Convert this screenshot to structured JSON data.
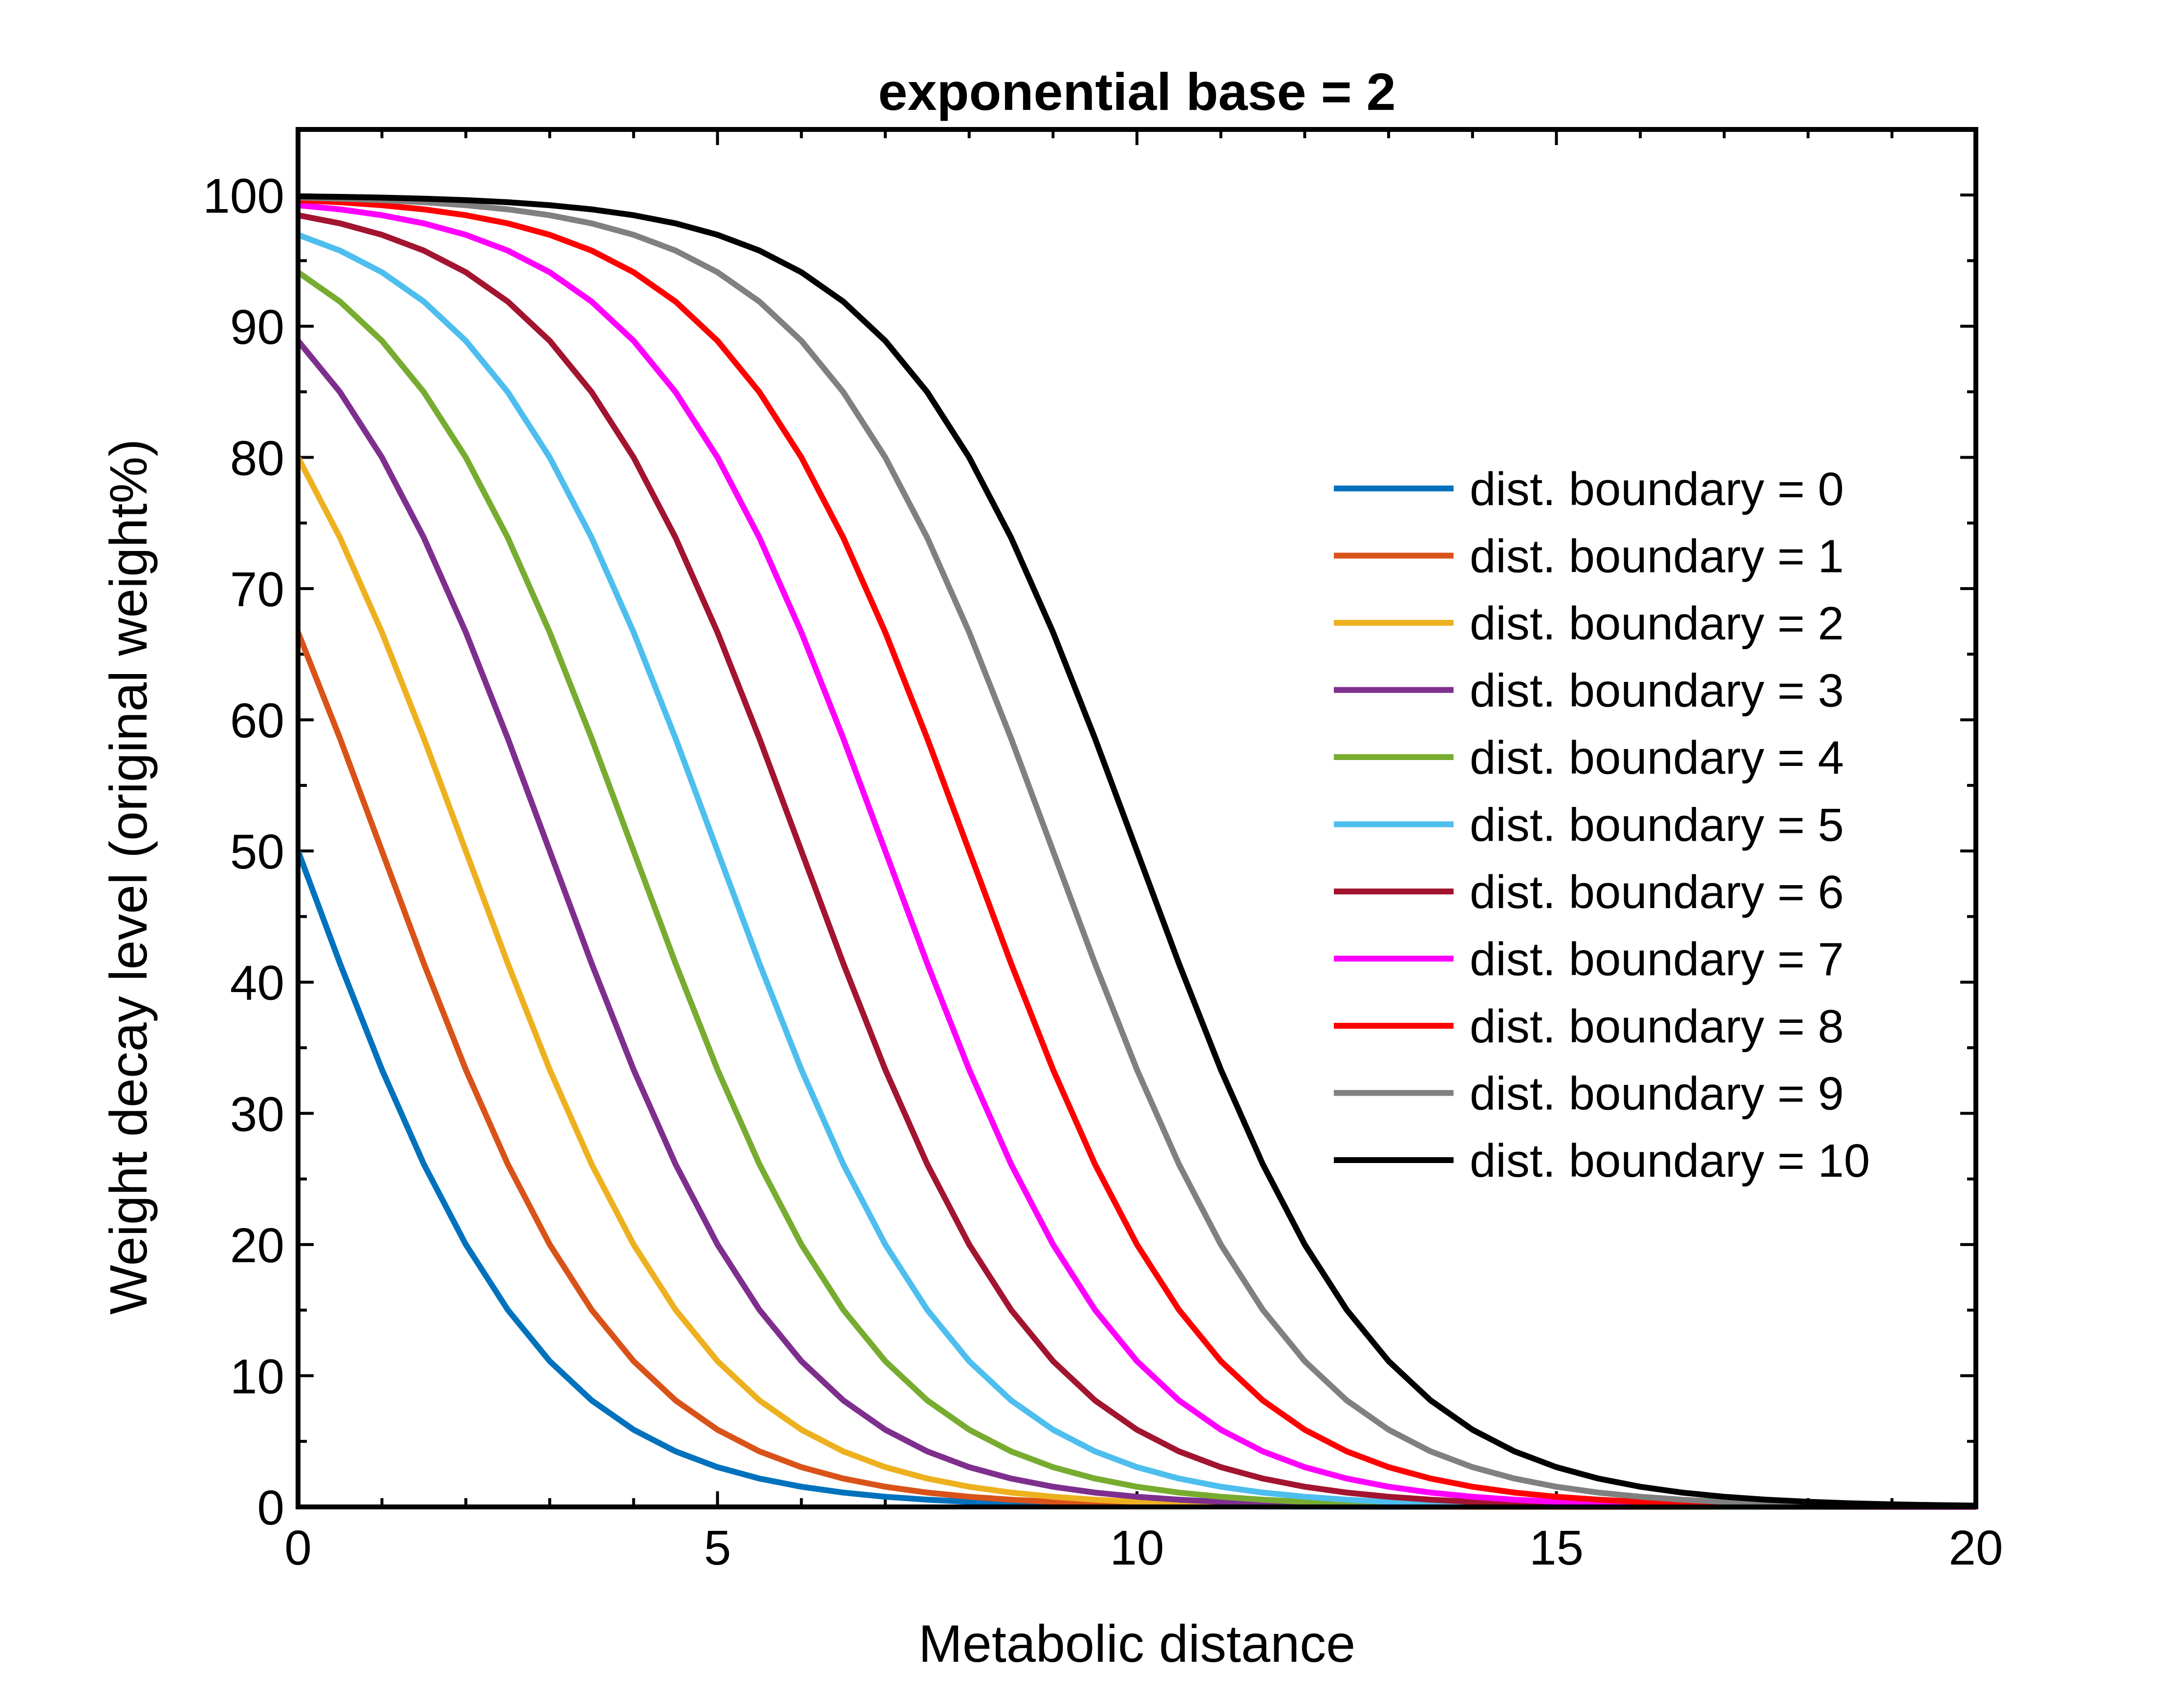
{
  "chart_data": {
    "type": "line",
    "title": "exponential base = 2",
    "xlabel": "Metabolic distance",
    "ylabel": "Weight decay level (original weight%)",
    "xlim": [
      0,
      20
    ],
    "ylim": [
      0,
      105
    ],
    "xticks": [
      0,
      5,
      10,
      15,
      20
    ],
    "yticks": [
      0,
      10,
      20,
      30,
      40,
      50,
      60,
      70,
      80,
      90,
      100
    ],
    "grid": false,
    "legend_position": "right",
    "x_step": 0.5,
    "series": [
      {
        "name": "dist. boundary = 0",
        "boundary": 0,
        "color": "#0072BD"
      },
      {
        "name": "dist. boundary = 1",
        "boundary": 1,
        "color": "#D95319"
      },
      {
        "name": "dist. boundary = 2",
        "boundary": 2,
        "color": "#EDB120"
      },
      {
        "name": "dist. boundary = 3",
        "boundary": 3,
        "color": "#7E2F8E"
      },
      {
        "name": "dist. boundary = 4",
        "boundary": 4,
        "color": "#77AC30"
      },
      {
        "name": "dist. boundary = 5",
        "boundary": 5,
        "color": "#4DBEEE"
      },
      {
        "name": "dist. boundary = 6",
        "boundary": 6,
        "color": "#A2142F"
      },
      {
        "name": "dist. boundary = 7",
        "boundary": 7,
        "color": "#FF00FF"
      },
      {
        "name": "dist. boundary = 8",
        "boundary": 8,
        "color": "#FF0000"
      },
      {
        "name": "dist. boundary = 9",
        "boundary": 9,
        "color": "#808080"
      },
      {
        "name": "dist. boundary = 10",
        "boundary": 10,
        "color": "#000000"
      }
    ]
  }
}
